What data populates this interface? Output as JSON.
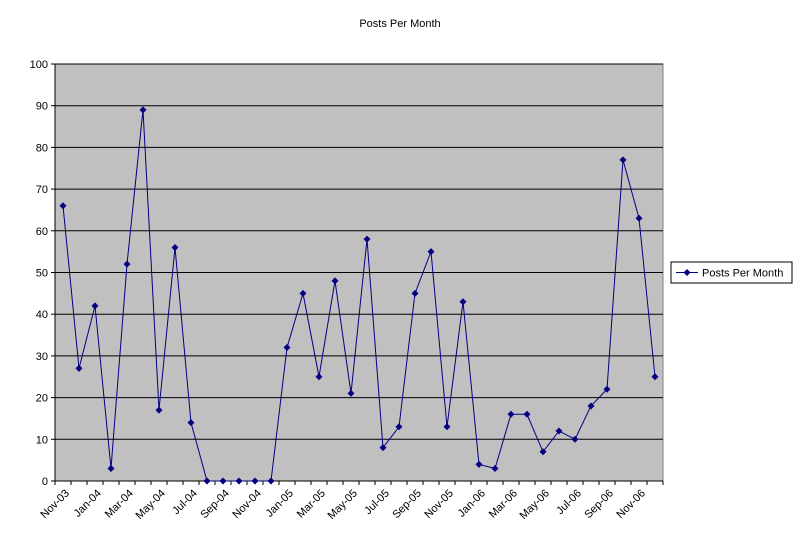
{
  "chart_data": {
    "type": "line",
    "title": "Posts Per Month",
    "categories": [
      "Nov-03",
      null,
      "Jan-04",
      null,
      "Mar-04",
      null,
      "May-04",
      null,
      "Jul-04",
      null,
      "Sep-04",
      null,
      "Nov-04",
      null,
      "Jan-05",
      null,
      "Mar-05",
      null,
      "May-05",
      null,
      "Jul-05",
      null,
      "Sep-05",
      null,
      "Nov-05",
      null,
      "Jan-06",
      null,
      "Mar-06",
      null,
      "May-06",
      null,
      "Jul-06",
      null,
      "Sep-06",
      null,
      "Nov-06",
      null
    ],
    "series": [
      {
        "name": "Posts Per Month",
        "color": "#000080",
        "values": [
          66,
          27,
          42,
          3,
          52,
          89,
          17,
          56,
          14,
          0,
          0,
          0,
          0,
          0,
          32,
          45,
          25,
          48,
          21,
          58,
          8,
          13,
          45,
          55,
          13,
          43,
          4,
          3,
          16,
          16,
          7,
          12,
          10,
          18,
          22,
          77,
          63,
          25
        ]
      }
    ],
    "ylim": [
      0,
      100
    ],
    "yticks": [
      0,
      10,
      20,
      30,
      40,
      50,
      60,
      70,
      80,
      90,
      100
    ],
    "grid": true,
    "legend": "right",
    "plot_background": "#c0c0c0"
  }
}
